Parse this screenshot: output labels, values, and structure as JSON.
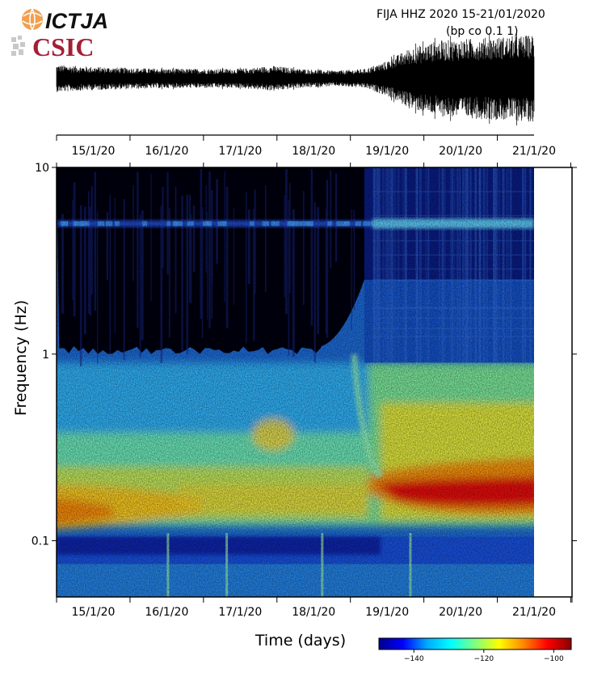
{
  "header": {
    "logo_ictja": "ICTJA",
    "logo_csic": "CSIC",
    "title_line1": "FIJA HHZ 2020 15-21/01/2020",
    "title_line2": "(bp co 0.1 1)"
  },
  "chart_data": [
    {
      "type": "line",
      "name": "seismogram",
      "description_of_panel": "",
      "x_ticks": [
        "15/1/20",
        "16/1/20",
        "17/1/20",
        "18/1/20",
        "19/1/20",
        "20/1/20",
        "21/1/20"
      ],
      "x_range_days": [
        0,
        6.5
      ],
      "amplitude_envelope": [
        {
          "x": 0.0,
          "a": 0.28
        },
        {
          "x": 0.5,
          "a": 0.24
        },
        {
          "x": 1.0,
          "a": 0.22
        },
        {
          "x": 1.5,
          "a": 0.2
        },
        {
          "x": 2.0,
          "a": 0.2
        },
        {
          "x": 2.5,
          "a": 0.2
        },
        {
          "x": 2.95,
          "a": 0.26
        },
        {
          "x": 3.3,
          "a": 0.2
        },
        {
          "x": 3.8,
          "a": 0.16
        },
        {
          "x": 4.2,
          "a": 0.2
        },
        {
          "x": 4.5,
          "a": 0.36
        },
        {
          "x": 4.8,
          "a": 0.62
        },
        {
          "x": 5.2,
          "a": 0.78
        },
        {
          "x": 5.8,
          "a": 0.84
        },
        {
          "x": 6.5,
          "a": 0.9
        }
      ]
    },
    {
      "type": "heatmap",
      "name": "spectrogram",
      "xlabel": "Time (days)",
      "ylabel": "Frequency (Hz)",
      "x_ticks": [
        "15/1/20",
        "16/1/20",
        "17/1/20",
        "18/1/20",
        "19/1/20",
        "20/1/20",
        "21/1/20"
      ],
      "y_scale": "log",
      "y_ticks": [
        10,
        1,
        0.1
      ],
      "y_range": [
        0.05,
        10
      ],
      "colorbar": {
        "ticks": [
          -140,
          -120,
          -100
        ],
        "range": [
          -150,
          -95
        ],
        "colors": [
          "#00008b",
          "#0000ff",
          "#00aaff",
          "#00ffff",
          "#7fff7f",
          "#ffff00",
          "#ff8800",
          "#ff0000",
          "#8b0000"
        ]
      },
      "features": {
        "band_5hz_freq": 5,
        "microseism_freq_before": 0.15,
        "microseism_freq_after": 0.17,
        "storm_onset_day": 4.3
      }
    }
  ]
}
